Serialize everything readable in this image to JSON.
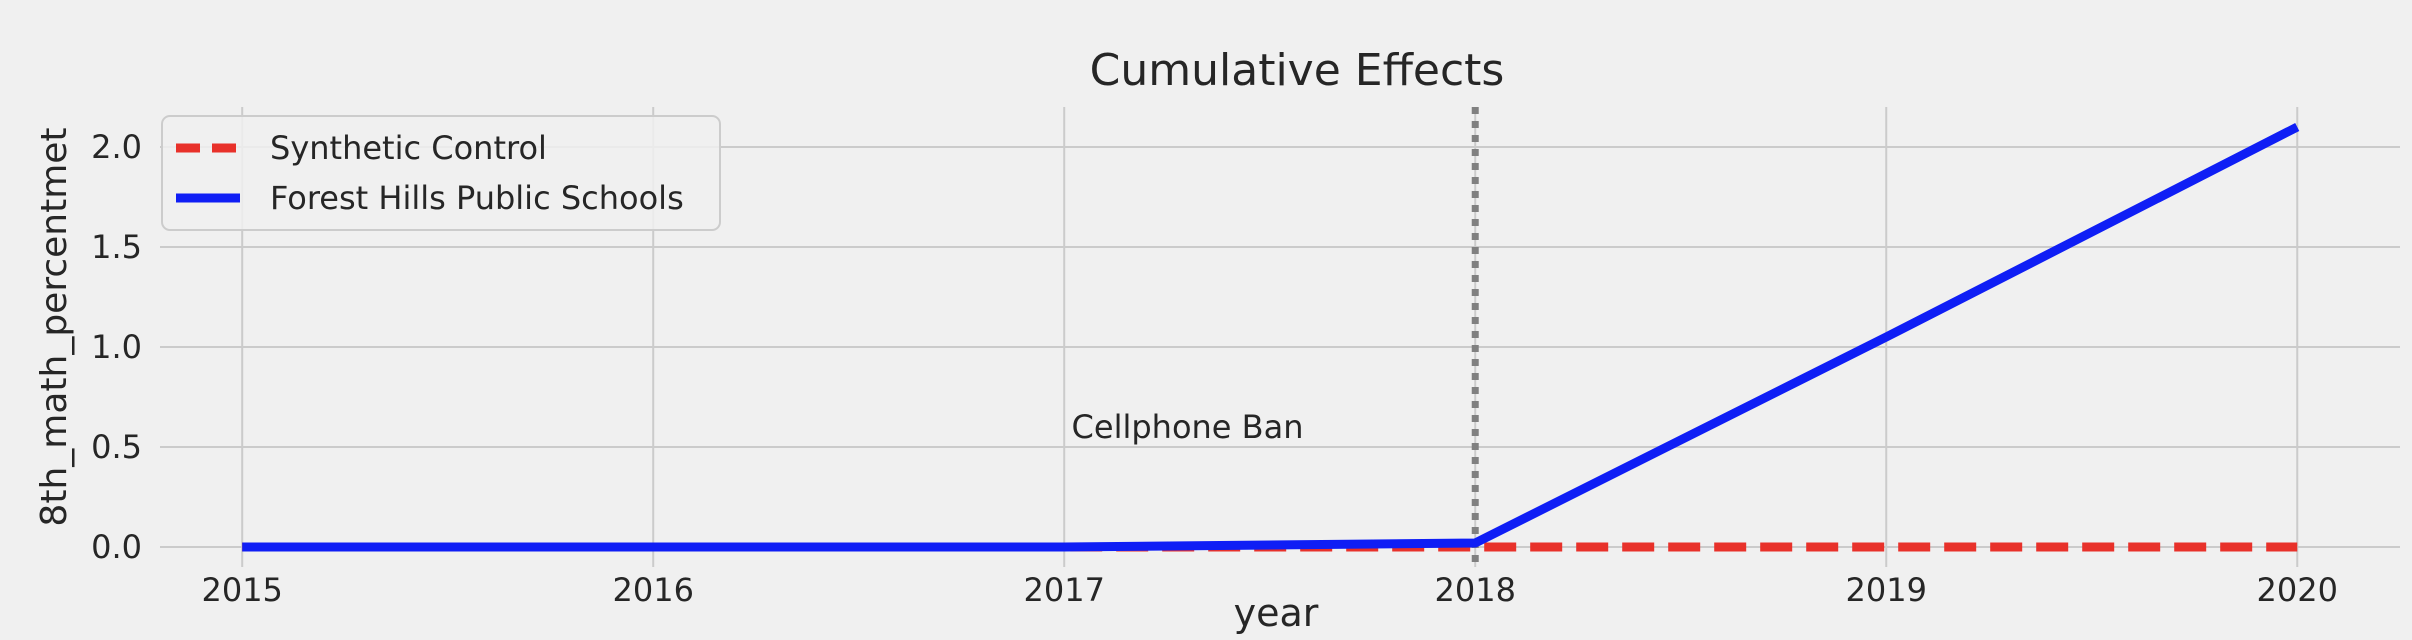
{
  "chart_data": {
    "type": "line",
    "title": "Cumulative Effects",
    "xlabel": "year",
    "ylabel": "8th_math_percentmet",
    "x": [
      2015,
      2016,
      2017,
      2018,
      2019,
      2020
    ],
    "xlim": [
      2014.8,
      2020.25
    ],
    "ylim": [
      -0.1,
      2.2
    ],
    "xticks": [
      2015,
      2016,
      2017,
      2018,
      2019,
      2020
    ],
    "yticks": [
      0.0,
      0.5,
      1.0,
      1.5,
      2.0
    ],
    "ytick_labels": [
      "0.0",
      "0.5",
      "1.0",
      "1.5",
      "2.0"
    ],
    "grid": true,
    "legend_position": "top-left",
    "series": [
      {
        "name": "Synthetic Control",
        "color": "#e8312a",
        "style": "dashed",
        "x": [
          2015,
          2016,
          2017,
          2018,
          2019,
          2020
        ],
        "values": [
          0,
          0,
          0,
          0,
          0,
          0
        ]
      },
      {
        "name": "Forest Hills Public Schools",
        "color": "#0f1ef5",
        "style": "solid",
        "x": [
          2015,
          2016,
          2017,
          2018,
          2019,
          2020
        ],
        "values": [
          0,
          0,
          0,
          0.02,
          1.05,
          2.1
        ]
      }
    ],
    "annotations": [
      {
        "text": "Cellphone Ban",
        "x": 2017.3,
        "y": 0.6
      }
    ],
    "vlines": [
      {
        "x": 2018,
        "color": "#808080",
        "style": "dotted"
      }
    ]
  }
}
